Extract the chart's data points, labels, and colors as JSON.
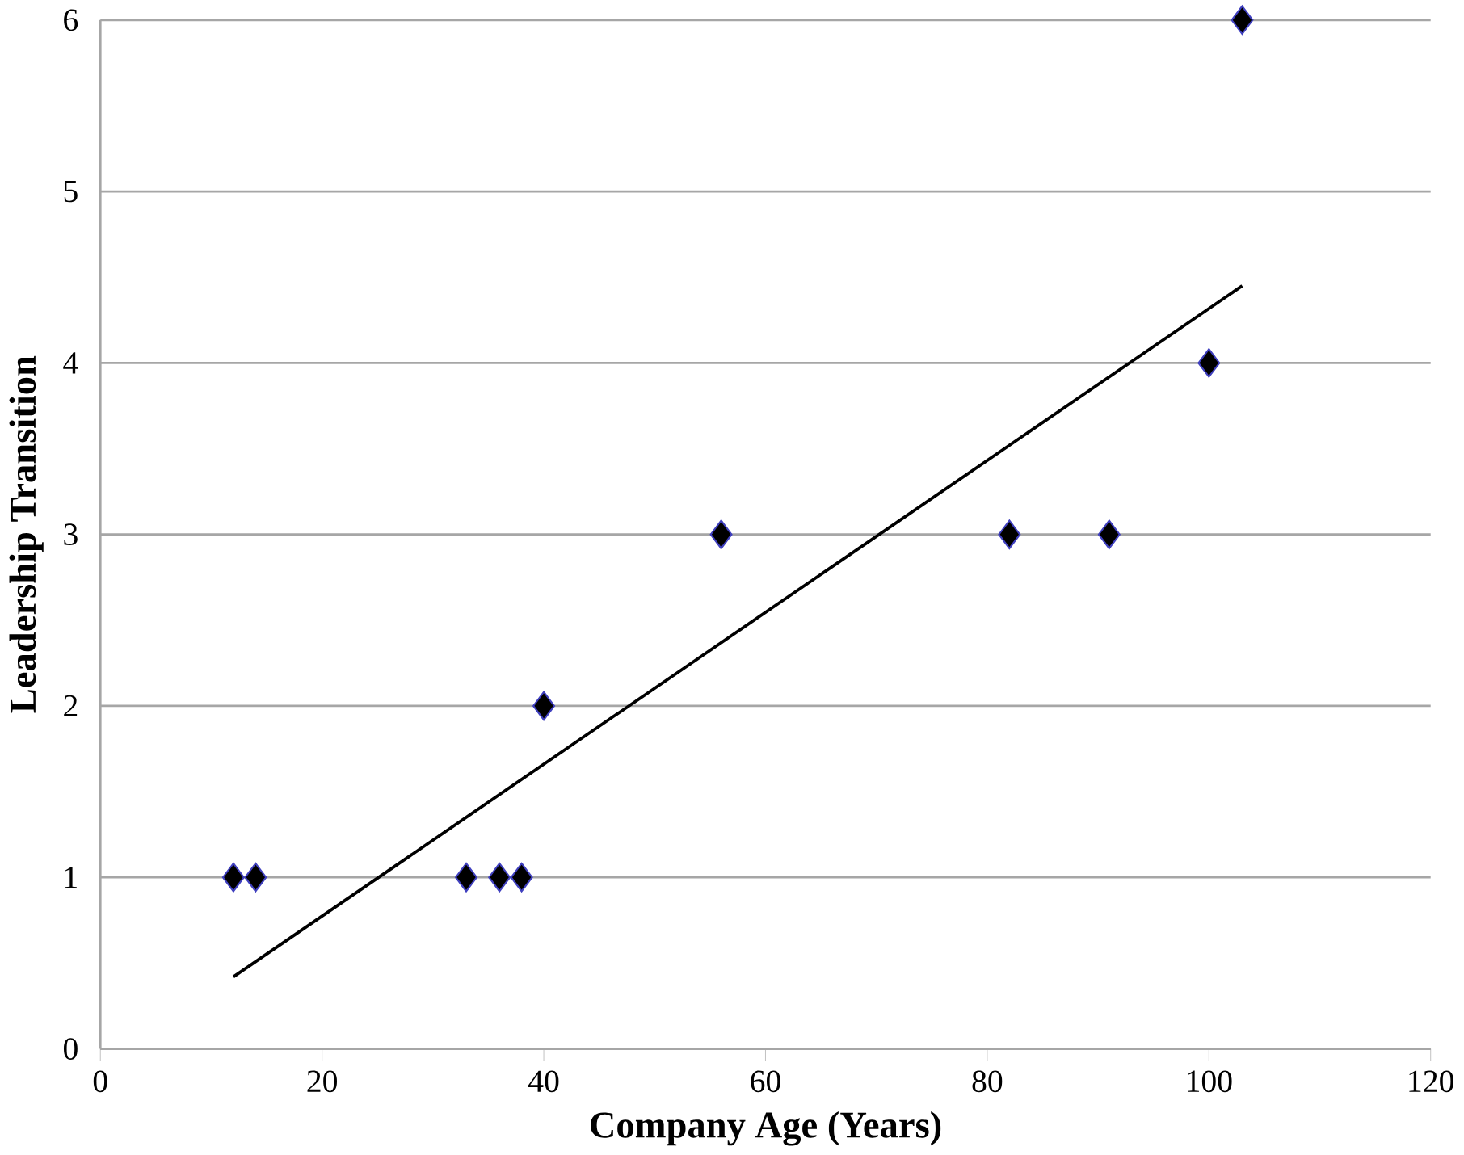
{
  "chart_data": {
    "type": "scatter",
    "xlabel": "Company Age (Years)",
    "ylabel": "Leadership Transition",
    "xlim": [
      0,
      120
    ],
    "xticks": [
      0,
      20,
      40,
      60,
      80,
      100,
      120
    ],
    "ylim": [
      0,
      6
    ],
    "yticks": [
      0,
      1,
      2,
      3,
      4,
      5,
      6
    ],
    "grid": "y",
    "series": [
      {
        "marker": "diamond",
        "color": "#000000",
        "x": [
          12,
          14,
          33,
          36,
          38,
          40,
          56,
          82,
          91,
          100,
          103
        ],
        "values": [
          1,
          1,
          1,
          1,
          1,
          2,
          3,
          3,
          3,
          4,
          6
        ]
      },
      {
        "type": "line",
        "marker": "none",
        "color": "#000000",
        "x": [
          12,
          103
        ],
        "values": [
          0.42,
          4.45
        ]
      }
    ]
  }
}
